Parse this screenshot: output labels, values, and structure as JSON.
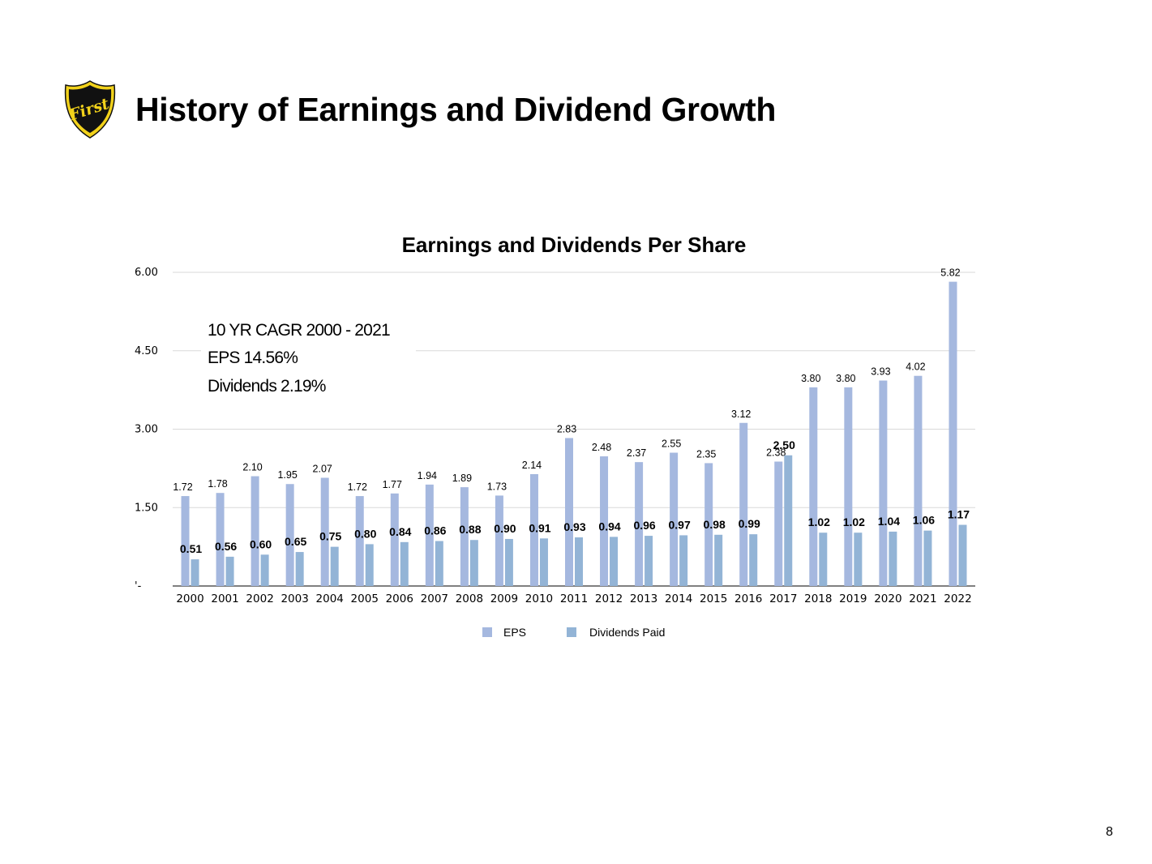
{
  "slide": {
    "title": "History of Earnings and Dividend Growth",
    "page_number": "8",
    "logo_text": "First"
  },
  "annotation": {
    "line1": "10 YR CAGR 2000 - 2021",
    "line2": "EPS 14.56%",
    "line3": "Dividends 2.19%"
  },
  "colors": {
    "eps": "#a5b8df",
    "dividends": "#93b4d6",
    "grid": "#d9d9d9",
    "axis": "#000000",
    "logo_gold": "#f2d21b",
    "logo_black": "#111111"
  },
  "chart_data": {
    "type": "bar",
    "title": "Earnings and Dividends Per Share",
    "xlabel": "",
    "ylabel": "",
    "ylim": [
      0,
      6
    ],
    "yticks": [
      {
        "value": 0,
        "label": "'-"
      },
      {
        "value": 1.5,
        "label": "1.50"
      },
      {
        "value": 3,
        "label": "3.00"
      },
      {
        "value": 4.5,
        "label": "4.50"
      },
      {
        "value": 6,
        "label": "6.00"
      }
    ],
    "grid": true,
    "legend_position": "bottom",
    "categories": [
      "2000",
      "2001",
      "2002",
      "2003",
      "2004",
      "2005",
      "2006",
      "2007",
      "2008",
      "2009",
      "2010",
      "2011",
      "2012",
      "2013",
      "2014",
      "2015",
      "2016",
      "2017",
      "2018",
      "2019",
      "2020",
      "2021",
      "2022"
    ],
    "series": [
      {
        "name": "EPS",
        "values": [
          1.72,
          1.78,
          2.1,
          1.95,
          2.07,
          1.72,
          1.77,
          1.94,
          1.89,
          1.73,
          2.14,
          2.83,
          2.48,
          2.37,
          2.55,
          2.35,
          3.12,
          2.38,
          3.8,
          3.8,
          3.93,
          4.02,
          5.82
        ],
        "labels": [
          "1.72",
          "1.78",
          "2.10",
          "1.95",
          "2.07",
          "1.72",
          "1.77",
          "1.94",
          "1.89",
          "1.73",
          "2.14",
          "2.83",
          "2.48",
          "2.37",
          "2.55",
          "2.35",
          "3.12",
          "2.38",
          "3.80",
          "3.80",
          "3.93",
          "4.02",
          "5.82"
        ]
      },
      {
        "name": "Dividends Paid",
        "values": [
          0.51,
          0.56,
          0.6,
          0.65,
          0.75,
          0.8,
          0.84,
          0.86,
          0.88,
          0.9,
          0.91,
          0.93,
          0.94,
          0.96,
          0.97,
          0.98,
          0.99,
          2.5,
          1.02,
          1.02,
          1.04,
          1.06,
          1.17
        ],
        "labels": [
          "0.51",
          "0.56",
          "0.60",
          "0.65",
          "0.75",
          "0.80",
          "0.84",
          "0.86",
          "0.88",
          "0.90",
          "0.91",
          "0.93",
          "0.94",
          "0.96",
          "0.97",
          "0.98",
          "0.99",
          "2.50",
          "1.02",
          "1.02",
          "1.04",
          "1.06",
          "1.17"
        ]
      }
    ]
  }
}
